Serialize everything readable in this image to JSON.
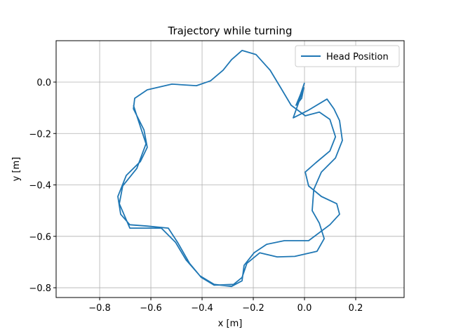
{
  "chart_data": {
    "type": "line",
    "title": "Trajectory while turning",
    "x_label": "x [m]",
    "y_label": "y [m]",
    "xlim": [
      -0.97,
      0.389
    ],
    "ylim": [
      -0.838,
      0.161
    ],
    "xticks": [
      {
        "value": -0.8,
        "label": "−0.8"
      },
      {
        "value": -0.6,
        "label": "−0.6"
      },
      {
        "value": -0.4,
        "label": "−0.4"
      },
      {
        "value": -0.2,
        "label": "−0.2"
      },
      {
        "value": 0,
        "label": "0.0"
      },
      0.2
    ],
    "yticks": [
      {
        "value": 0,
        "label": "0.0"
      },
      {
        "value": -0.2,
        "label": "−0.2"
      },
      {
        "value": -0.4,
        "label": "−0.4"
      },
      {
        "value": -0.6,
        "label": "−0.6"
      },
      {
        "value": -0.8,
        "label": "−0.8"
      }
    ],
    "grid": true,
    "legend": "upper right",
    "series": [
      {
        "name": "Head Position",
        "color": "#1f77b4",
        "x": [
          0,
          -0.016,
          -0.033,
          -0.011,
          -0.003,
          -0.022,
          -0.044,
          0.016,
          0.088,
          0.115,
          0.137,
          0.148,
          0.121,
          0.066,
          0.036,
          0.03,
          0.058,
          0.077,
          0.049,
          -0.038,
          -0.107,
          -0.175,
          -0.225,
          -0.244,
          -0.277,
          -0.353,
          -0.403,
          -0.449,
          -0.496,
          -0.532,
          -0.614,
          -0.682,
          -0.718,
          -0.729,
          -0.696,
          -0.641,
          -0.614,
          -0.627,
          -0.668,
          -0.663,
          -0.614,
          -0.518,
          -0.422,
          -0.367,
          -0.318,
          -0.285,
          -0.244,
          -0.189,
          -0.134,
          -0.093,
          -0.052,
          0.003,
          0.058,
          0.099,
          0.121,
          0.099,
          0.044,
          0.003,
          0.016,
          0.066,
          0.126,
          0.137,
          0.099,
          0.016,
          -0.079,
          -0.148,
          -0.197,
          -0.236,
          -0.244,
          -0.285,
          -0.353,
          -0.408,
          -0.463,
          -0.504,
          -0.559,
          -0.682,
          -0.723,
          -0.71,
          -0.655,
          -0.619,
          -0.655,
          -0.668
        ],
        "values": [
          -0.003,
          -0.049,
          -0.09,
          -0.063,
          -0.022,
          -0.077,
          -0.139,
          -0.109,
          -0.066,
          -0.104,
          -0.15,
          -0.227,
          -0.295,
          -0.35,
          -0.418,
          -0.5,
          -0.549,
          -0.609,
          -0.658,
          -0.678,
          -0.68,
          -0.664,
          -0.705,
          -0.76,
          -0.787,
          -0.79,
          -0.76,
          -0.705,
          -0.623,
          -0.568,
          -0.56,
          -0.555,
          -0.514,
          -0.445,
          -0.363,
          -0.309,
          -0.254,
          -0.186,
          -0.104,
          -0.063,
          -0.03,
          -0.008,
          -0.014,
          0.005,
          0.046,
          0.087,
          0.123,
          0.107,
          0.046,
          -0.022,
          -0.09,
          -0.131,
          -0.117,
          -0.145,
          -0.213,
          -0.268,
          -0.314,
          -0.35,
          -0.404,
          -0.445,
          -0.473,
          -0.514,
          -0.555,
          -0.617,
          -0.617,
          -0.631,
          -0.664,
          -0.713,
          -0.773,
          -0.795,
          -0.787,
          -0.754,
          -0.691,
          -0.623,
          -0.568,
          -0.568,
          -0.473,
          -0.404,
          -0.336,
          -0.24,
          -0.131,
          -0.09
        ]
      }
    ]
  }
}
